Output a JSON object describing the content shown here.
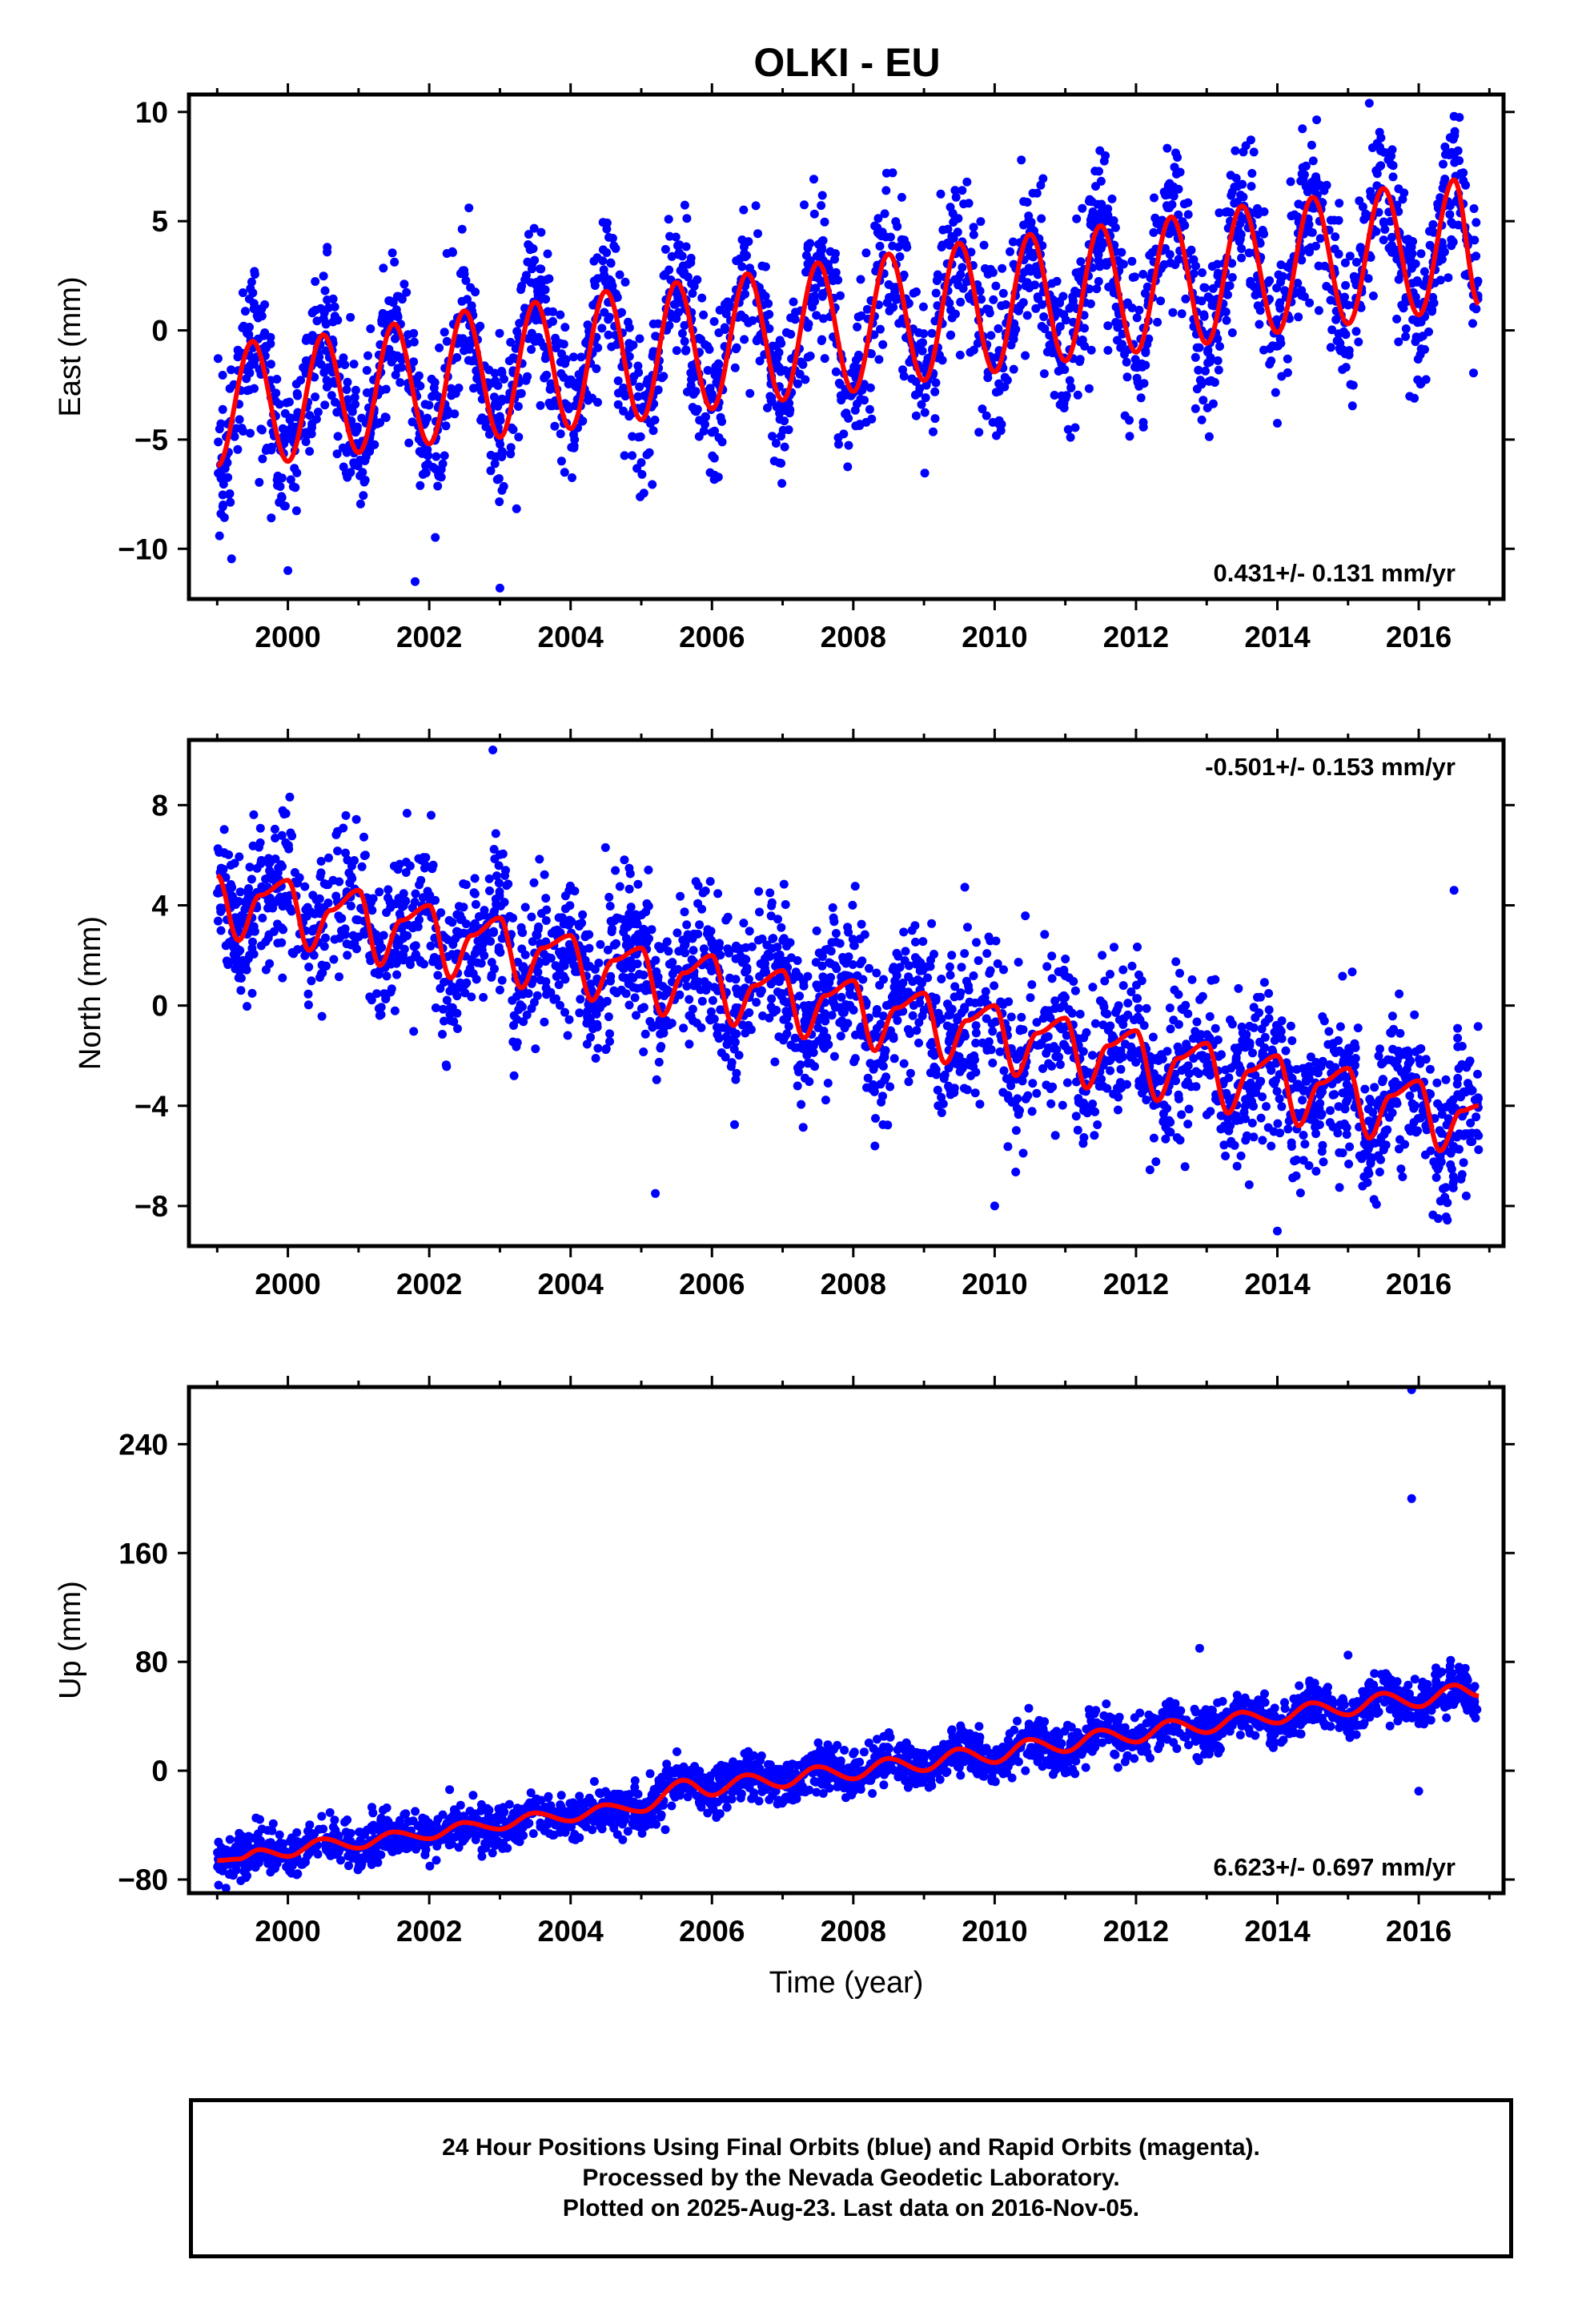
{
  "title": "OLKI - EU",
  "footer": {
    "line1": "24 Hour Positions Using Final Orbits (blue) and Rapid Orbits (magenta).",
    "line2": "Processed by the Nevada Geodetic Laboratory.",
    "line3": "Plotted on 2025-Aug-23. Last data on 2016-Nov-05."
  },
  "colors": {
    "points": "#0000ff",
    "model": "#ff0000",
    "frame": "#000000"
  },
  "chart_data": [
    {
      "type": "scatter",
      "component": "east",
      "ylabel": "East (mm)",
      "xlim": [
        1998.6,
        2017.2
      ],
      "ylim": [
        -12.3,
        10.8
      ],
      "xticks": [
        2000,
        2002,
        2004,
        2006,
        2008,
        2010,
        2012,
        2014,
        2016
      ],
      "yticks": [
        -10,
        -5,
        0,
        5,
        10
      ],
      "rate_label": "0.431+/- 0.131 mm/yr",
      "rate_label_position": "bottom-right",
      "data_range": [
        1999.0,
        2016.85
      ],
      "trend_curve": [
        [
          1999.0,
          -6.2
        ],
        [
          1999.5,
          -0.5
        ],
        [
          2000.0,
          -6.0
        ],
        [
          2000.5,
          -0.2
        ],
        [
          2001.0,
          -5.6
        ],
        [
          2001.5,
          0.3
        ],
        [
          2002.0,
          -5.2
        ],
        [
          2002.5,
          0.9
        ],
        [
          2003.0,
          -4.9
        ],
        [
          2003.5,
          1.3
        ],
        [
          2004.0,
          -4.5
        ],
        [
          2004.5,
          1.8
        ],
        [
          2005.0,
          -4.1
        ],
        [
          2005.5,
          2.2
        ],
        [
          2006.0,
          -3.6
        ],
        [
          2006.5,
          2.6
        ],
        [
          2007.0,
          -3.2
        ],
        [
          2007.5,
          3.1
        ],
        [
          2008.0,
          -2.8
        ],
        [
          2008.5,
          3.5
        ],
        [
          2009.0,
          -2.3
        ],
        [
          2009.5,
          4.0
        ],
        [
          2010.0,
          -1.9
        ],
        [
          2010.5,
          4.4
        ],
        [
          2011.0,
          -1.4
        ],
        [
          2011.5,
          4.8
        ],
        [
          2012.0,
          -1.0
        ],
        [
          2012.5,
          5.2
        ],
        [
          2013.0,
          -0.6
        ],
        [
          2013.5,
          5.7
        ],
        [
          2014.0,
          -0.1
        ],
        [
          2014.5,
          6.1
        ],
        [
          2015.0,
          0.3
        ],
        [
          2015.5,
          6.5
        ],
        [
          2016.0,
          0.7
        ],
        [
          2016.5,
          6.9
        ],
        [
          2016.85,
          1.2
        ]
      ],
      "scatter_spread": 1.8,
      "outliers": [
        [
          2001.8,
          -11.5
        ],
        [
          2003.0,
          -11.8
        ],
        [
          2000.0,
          -11.0
        ],
        [
          2016.5,
          9.8
        ],
        [
          2015.3,
          10.4
        ]
      ]
    },
    {
      "type": "scatter",
      "component": "north",
      "ylabel": "North (mm)",
      "xlim": [
        1998.6,
        2017.2
      ],
      "ylim": [
        -9.6,
        10.6
      ],
      "xticks": [
        2000,
        2002,
        2004,
        2006,
        2008,
        2010,
        2012,
        2014,
        2016
      ],
      "yticks": [
        -8,
        -4,
        0,
        4,
        8
      ],
      "rate_label": "-0.501+/- 0.153 mm/yr",
      "rate_label_position": "top-right",
      "data_range": [
        1999.0,
        2016.85
      ],
      "trend_curve": [
        [
          1999.0,
          5.2
        ],
        [
          1999.3,
          2.6
        ],
        [
          1999.6,
          4.4
        ],
        [
          2000.0,
          5.0
        ],
        [
          2000.3,
          2.2
        ],
        [
          2000.6,
          3.8
        ],
        [
          2001.0,
          4.6
        ],
        [
          2001.3,
          1.6
        ],
        [
          2001.6,
          3.4
        ],
        [
          2002.0,
          4.0
        ],
        [
          2002.3,
          1.1
        ],
        [
          2002.6,
          2.8
        ],
        [
          2003.0,
          3.5
        ],
        [
          2003.3,
          0.7
        ],
        [
          2003.6,
          2.3
        ],
        [
          2004.0,
          2.8
        ],
        [
          2004.3,
          0.2
        ],
        [
          2004.6,
          1.8
        ],
        [
          2005.0,
          2.3
        ],
        [
          2005.3,
          -0.4
        ],
        [
          2005.6,
          1.3
        ],
        [
          2006.0,
          2.0
        ],
        [
          2006.3,
          -0.8
        ],
        [
          2006.6,
          0.8
        ],
        [
          2007.0,
          1.4
        ],
        [
          2007.3,
          -1.3
        ],
        [
          2007.6,
          0.4
        ],
        [
          2008.0,
          1.0
        ],
        [
          2008.3,
          -1.8
        ],
        [
          2008.6,
          -0.1
        ],
        [
          2009.0,
          0.5
        ],
        [
          2009.3,
          -2.3
        ],
        [
          2009.6,
          -0.6
        ],
        [
          2010.0,
          0.0
        ],
        [
          2010.3,
          -2.8
        ],
        [
          2010.6,
          -1.1
        ],
        [
          2011.0,
          -0.5
        ],
        [
          2011.3,
          -3.3
        ],
        [
          2011.6,
          -1.6
        ],
        [
          2012.0,
          -1.0
        ],
        [
          2012.3,
          -3.8
        ],
        [
          2012.6,
          -2.1
        ],
        [
          2013.0,
          -1.5
        ],
        [
          2013.3,
          -4.3
        ],
        [
          2013.6,
          -2.6
        ],
        [
          2014.0,
          -2.0
        ],
        [
          2014.3,
          -4.8
        ],
        [
          2014.6,
          -3.1
        ],
        [
          2015.0,
          -2.5
        ],
        [
          2015.3,
          -5.3
        ],
        [
          2015.6,
          -3.6
        ],
        [
          2016.0,
          -3.0
        ],
        [
          2016.3,
          -5.8
        ],
        [
          2016.6,
          -4.2
        ],
        [
          2016.85,
          -4.0
        ]
      ],
      "scatter_spread": 1.5,
      "outliers": [
        [
          2002.9,
          10.2
        ],
        [
          2005.2,
          -7.5
        ],
        [
          2010.0,
          -8.0
        ],
        [
          2014.0,
          -9.0
        ],
        [
          2016.5,
          4.6
        ]
      ]
    },
    {
      "type": "scatter",
      "component": "up",
      "ylabel": "Up (mm)",
      "xlabel": "Time (year)",
      "xlim": [
        1998.6,
        2017.2
      ],
      "ylim": [
        -90,
        282
      ],
      "xticks": [
        2000,
        2002,
        2004,
        2006,
        2008,
        2010,
        2012,
        2014,
        2016
      ],
      "yticks": [
        -80,
        0,
        80,
        160,
        240
      ],
      "rate_label": "6.623+/- 0.697 mm/yr",
      "rate_label_position": "bottom-right",
      "data_range": [
        1999.0,
        2016.85
      ],
      "trend_curve": [
        [
          1999.0,
          -66
        ],
        [
          1999.3,
          -65
        ],
        [
          1999.6,
          -58
        ],
        [
          2000.0,
          -63
        ],
        [
          2000.5,
          -50
        ],
        [
          2001.0,
          -57
        ],
        [
          2001.5,
          -45
        ],
        [
          2002.0,
          -50
        ],
        [
          2002.5,
          -38
        ],
        [
          2003.0,
          -43
        ],
        [
          2003.5,
          -31
        ],
        [
          2004.0,
          -37
        ],
        [
          2004.5,
          -25
        ],
        [
          2005.0,
          -30
        ],
        [
          2005.6,
          -7
        ],
        [
          2006.0,
          -18
        ],
        [
          2006.5,
          -3
        ],
        [
          2007.0,
          -12
        ],
        [
          2007.5,
          3
        ],
        [
          2008.0,
          -6
        ],
        [
          2008.5,
          9
        ],
        [
          2009.0,
          0
        ],
        [
          2009.5,
          16
        ],
        [
          2010.0,
          6
        ],
        [
          2010.5,
          23
        ],
        [
          2011.0,
          14
        ],
        [
          2011.5,
          30
        ],
        [
          2012.0,
          21
        ],
        [
          2012.5,
          37
        ],
        [
          2013.0,
          28
        ],
        [
          2013.5,
          43
        ],
        [
          2014.0,
          35
        ],
        [
          2014.5,
          50
        ],
        [
          2015.0,
          41
        ],
        [
          2015.5,
          57
        ],
        [
          2016.0,
          47
        ],
        [
          2016.5,
          63
        ],
        [
          2016.85,
          55
        ]
      ],
      "scatter_spread": 8,
      "outliers": [
        [
          2015.9,
          280
        ],
        [
          2015.9,
          200
        ],
        [
          2012.9,
          90
        ],
        [
          2015.0,
          85
        ],
        [
          2016.0,
          -15
        ]
      ]
    }
  ]
}
